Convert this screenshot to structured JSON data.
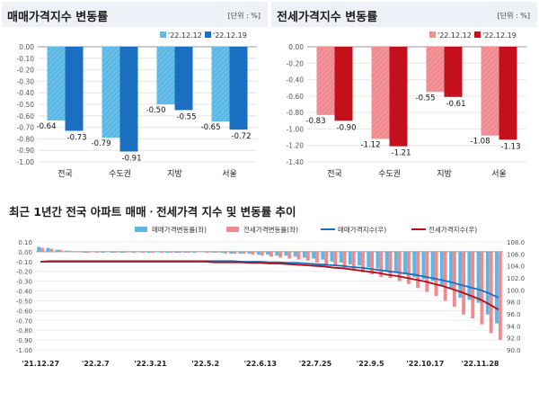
{
  "chart_data": [
    {
      "type": "bar",
      "title": "매매가격지수 변동률",
      "unit": "[단위 : %]",
      "categories": [
        "전국",
        "수도권",
        "지방",
        "서울"
      ],
      "series": [
        {
          "name": "'22.12.12",
          "values": [
            -0.64,
            -0.79,
            -0.5,
            -0.65
          ],
          "color": "#5bb8e6"
        },
        {
          "name": "'22.12.19",
          "values": [
            -0.73,
            -0.91,
            -0.55,
            -0.72
          ],
          "color": "#1a6fc0"
        }
      ],
      "value_labels": [
        [
          "-0.64",
          "-0.73"
        ],
        [
          "-0.79",
          "-0.91"
        ],
        [
          "-0.50",
          "-0.55"
        ],
        [
          "-0.65",
          "-0.72"
        ]
      ],
      "ylim": [
        -1.0,
        0.0
      ],
      "yticks": [
        "0.00",
        "-0.10",
        "-0.20",
        "-0.30",
        "-0.40",
        "-0.50",
        "-0.60",
        "-0.70",
        "-0.80",
        "-0.90",
        "-1.00"
      ],
      "grid": true,
      "legend": "top-right"
    },
    {
      "type": "bar",
      "title": "전세가격지수 변동률",
      "unit": "[단위 : %]",
      "categories": [
        "전국",
        "수도권",
        "지방",
        "서울"
      ],
      "series": [
        {
          "name": "'22.12.12",
          "values": [
            -0.83,
            -1.12,
            -0.55,
            -1.08
          ],
          "color": "#f08a8f"
        },
        {
          "name": "'22.12.19",
          "values": [
            -0.9,
            -1.21,
            -0.61,
            -1.13
          ],
          "color": "#c4101c"
        }
      ],
      "value_labels": [
        [
          "-0.83",
          "-0.90"
        ],
        [
          "-1.12",
          "-1.21"
        ],
        [
          "-0.55",
          "-0.61"
        ],
        [
          "-1.08",
          "-1.13"
        ]
      ],
      "ylim": [
        -1.4,
        0.0
      ],
      "yticks": [
        "0.00",
        "-0.20",
        "-0.40",
        "-0.60",
        "-0.80",
        "-1.00",
        "-1.20",
        "-1.40"
      ],
      "grid": true,
      "legend": "top-right"
    },
    {
      "type": "line",
      "title": "최근 1년간 전국 아파트 매매ㆍ전세가격 지수 및 변동률 추이",
      "x_labels": [
        "'21.12.27",
        "'22.2.7",
        "'22.3.21",
        "'22.5.2",
        "'22.6.13",
        "'22.7.25",
        "'22.9.5",
        "'22.10.17",
        "'22.11.28"
      ],
      "legend": [
        "매매가격변동률(좌)",
        "전세가격변동률(좌)",
        "매매가격지수(우)",
        "전세가격지수(우)"
      ],
      "left_axis": {
        "ylim": [
          -1.0,
          0.1
        ],
        "ticks": [
          "0.10",
          "0.00",
          "-0.10",
          "-0.20",
          "-0.30",
          "-0.40",
          "-0.50",
          "-0.60",
          "-0.70",
          "-0.80",
          "-0.90",
          "-1.00"
        ]
      },
      "right_axis": {
        "ylim": [
          90.0,
          108.0
        ],
        "ticks": [
          "108.0",
          "106.0",
          "104.0",
          "102.0",
          "100.0",
          "98.0",
          "96.0",
          "94.0",
          "92.0",
          "90.0"
        ]
      },
      "series": [
        {
          "name": "매매가격변동률(좌)",
          "kind": "bar",
          "axis": "left",
          "color": "#5bb8e6",
          "values": [
            0.05,
            0.04,
            0.02,
            0.01,
            0.0,
            -0.01,
            0.0,
            -0.01,
            -0.01,
            -0.01,
            0.0,
            0.0,
            -0.01,
            0.0,
            -0.01,
            -0.01,
            -0.01,
            -0.01,
            0.0,
            -0.01,
            -0.01,
            -0.02,
            -0.02,
            -0.02,
            -0.03,
            -0.03,
            -0.04,
            -0.04,
            -0.05,
            -0.06,
            -0.07,
            -0.08,
            -0.1,
            -0.11,
            -0.13,
            -0.14,
            -0.16,
            -0.17,
            -0.19,
            -0.21,
            -0.22,
            -0.26,
            -0.28,
            -0.3,
            -0.34,
            -0.38,
            -0.47,
            -0.49,
            -0.52,
            -0.64,
            -0.73
          ]
        },
        {
          "name": "전세가격변동률(좌)",
          "kind": "bar",
          "axis": "left",
          "color": "#f08a8f",
          "values": [
            0.04,
            0.03,
            0.02,
            0.01,
            0.0,
            -0.01,
            -0.01,
            0.0,
            -0.01,
            -0.01,
            -0.01,
            -0.01,
            -0.01,
            -0.01,
            -0.01,
            -0.01,
            -0.01,
            0.0,
            -0.01,
            -0.01,
            -0.02,
            -0.02,
            -0.02,
            -0.03,
            -0.04,
            -0.05,
            -0.06,
            -0.07,
            -0.08,
            -0.09,
            -0.11,
            -0.13,
            -0.15,
            -0.17,
            -0.19,
            -0.21,
            -0.23,
            -0.26,
            -0.27,
            -0.3,
            -0.33,
            -0.37,
            -0.41,
            -0.45,
            -0.5,
            -0.56,
            -0.64,
            -0.68,
            -0.74,
            -0.83,
            -0.9
          ]
        },
        {
          "name": "매매가격지수(우)",
          "kind": "line",
          "axis": "right",
          "color": "#1a6fc0",
          "values": [
            104.7,
            104.8,
            104.8,
            104.8,
            104.8,
            104.8,
            104.8,
            104.8,
            104.8,
            104.8,
            104.8,
            104.8,
            104.8,
            104.8,
            104.8,
            104.8,
            104.8,
            104.8,
            104.8,
            104.8,
            104.8,
            104.8,
            104.7,
            104.7,
            104.7,
            104.6,
            104.6,
            104.5,
            104.5,
            104.4,
            104.3,
            104.2,
            104.1,
            104.0,
            103.8,
            103.7,
            103.5,
            103.3,
            103.1,
            102.9,
            102.7,
            102.5,
            102.2,
            101.9,
            101.6,
            101.2,
            100.8,
            100.4,
            100.0,
            99.4,
            98.7
          ]
        },
        {
          "name": "전세가격지수(우)",
          "kind": "line",
          "axis": "right",
          "color": "#b01018",
          "values": [
            104.7,
            104.7,
            104.7,
            104.7,
            104.7,
            104.7,
            104.7,
            104.7,
            104.7,
            104.7,
            104.7,
            104.7,
            104.7,
            104.7,
            104.7,
            104.7,
            104.7,
            104.7,
            104.7,
            104.6,
            104.6,
            104.6,
            104.6,
            104.5,
            104.5,
            104.4,
            104.4,
            104.3,
            104.2,
            104.1,
            104.0,
            103.9,
            103.7,
            103.6,
            103.4,
            103.2,
            103.0,
            102.8,
            102.5,
            102.3,
            102.0,
            101.7,
            101.4,
            101.0,
            100.6,
            100.1,
            99.6,
            99.0,
            98.4,
            97.6,
            96.7
          ]
        }
      ]
    }
  ]
}
